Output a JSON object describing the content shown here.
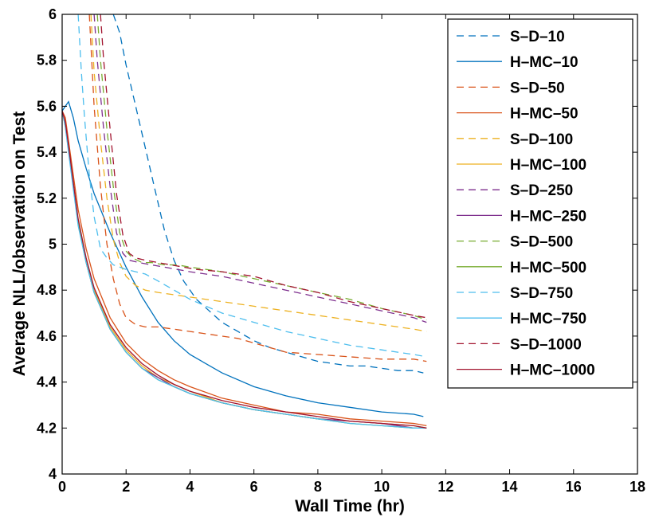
{
  "chart_data": {
    "type": "line",
    "title": "",
    "xlabel": "Wall Time (hr)",
    "ylabel": "Average NLL/observation on Test",
    "xlim": [
      0,
      18
    ],
    "ylim": [
      4,
      6
    ],
    "xticks": [
      0,
      2,
      4,
      6,
      8,
      10,
      12,
      14,
      16,
      18
    ],
    "yticks": [
      4,
      4.2,
      4.4,
      4.6,
      4.8,
      5,
      5.2,
      5.4,
      5.6,
      5.8,
      6
    ],
    "xtick_labels": [
      "0",
      "2",
      "4",
      "6",
      "8",
      "10",
      "12",
      "14",
      "16",
      "18"
    ],
    "ytick_labels": [
      "4",
      "4.2",
      "4.4",
      "4.6",
      "4.8",
      "5",
      "5.2",
      "5.4",
      "5.6",
      "5.8",
      "6"
    ],
    "grid": false,
    "legend_position": "top-right",
    "series": [
      {
        "name": "S–D–10",
        "color": "#0072BD",
        "dash": true,
        "x": [
          1.6,
          1.8,
          2.0,
          2.3,
          2.6,
          2.9,
          3.2,
          3.5,
          3.8,
          4.2,
          4.6,
          5.0,
          5.5,
          6.0,
          6.5,
          7.0,
          7.5,
          8.0,
          8.5,
          9.0,
          9.5,
          10.0,
          10.5,
          11.0,
          11.3
        ],
        "y": [
          6.0,
          5.92,
          5.78,
          5.6,
          5.42,
          5.24,
          5.06,
          4.93,
          4.84,
          4.76,
          4.71,
          4.66,
          4.62,
          4.58,
          4.55,
          4.53,
          4.51,
          4.49,
          4.48,
          4.47,
          4.47,
          4.46,
          4.45,
          4.45,
          4.44
        ]
      },
      {
        "name": "H–MC–10",
        "color": "#0072BD",
        "dash": false,
        "x": [
          0.0,
          0.1,
          0.2,
          0.35,
          0.5,
          0.75,
          1.0,
          1.5,
          2.0,
          2.5,
          3.0,
          3.5,
          4.0,
          5.0,
          6.0,
          7.0,
          8.0,
          9.0,
          10.0,
          11.0,
          11.3
        ],
        "y": [
          5.58,
          5.6,
          5.62,
          5.55,
          5.45,
          5.33,
          5.22,
          5.05,
          4.9,
          4.77,
          4.66,
          4.58,
          4.52,
          4.44,
          4.38,
          4.34,
          4.31,
          4.29,
          4.27,
          4.26,
          4.25
        ]
      },
      {
        "name": "S–D–50",
        "color": "#D95319",
        "dash": true,
        "x": [
          0.85,
          1.0,
          1.2,
          1.4,
          1.6,
          1.8,
          2.0,
          2.3,
          2.6,
          3.0,
          3.5,
          4.0,
          4.5,
          5.0,
          5.5,
          6.0,
          7.0,
          8.0,
          9.0,
          10.0,
          11.0,
          11.4
        ],
        "y": [
          6.0,
          5.6,
          5.25,
          5.0,
          4.85,
          4.74,
          4.68,
          4.65,
          4.64,
          4.64,
          4.63,
          4.62,
          4.61,
          4.6,
          4.59,
          4.57,
          4.53,
          4.52,
          4.51,
          4.5,
          4.5,
          4.49
        ]
      },
      {
        "name": "H–MC–50",
        "color": "#D95319",
        "dash": false,
        "x": [
          0.0,
          0.1,
          0.2,
          0.35,
          0.5,
          0.75,
          1.0,
          1.5,
          2.0,
          2.5,
          3.0,
          3.5,
          4.0,
          5.0,
          6.0,
          7.0,
          8.0,
          9.0,
          10.0,
          11.0,
          11.4
        ],
        "y": [
          5.58,
          5.55,
          5.45,
          5.3,
          5.15,
          4.98,
          4.85,
          4.68,
          4.57,
          4.5,
          4.45,
          4.41,
          4.38,
          4.33,
          4.3,
          4.27,
          4.26,
          4.24,
          4.23,
          4.22,
          4.21
        ]
      },
      {
        "name": "S–D–100",
        "color": "#EDB120",
        "dash": true,
        "x": [
          0.9,
          1.0,
          1.2,
          1.4,
          1.6,
          1.8,
          2.0,
          2.3,
          2.6,
          3.0,
          3.5,
          4.0,
          5.0,
          6.0,
          7.0,
          8.0,
          9.0,
          10.0,
          11.0,
          11.4
        ],
        "y": [
          6.0,
          5.75,
          5.45,
          5.2,
          5.02,
          4.92,
          4.86,
          4.82,
          4.8,
          4.79,
          4.78,
          4.77,
          4.75,
          4.73,
          4.71,
          4.69,
          4.67,
          4.65,
          4.63,
          4.62
        ]
      },
      {
        "name": "H–MC–100",
        "color": "#EDB120",
        "dash": false,
        "x": [
          0.0,
          0.1,
          0.2,
          0.35,
          0.5,
          0.75,
          1.0,
          1.5,
          2.0,
          2.5,
          3.0,
          3.5,
          4.0,
          5.0,
          6.0,
          7.0,
          8.0,
          9.0,
          10.0,
          11.0,
          11.4
        ],
        "y": [
          5.58,
          5.52,
          5.42,
          5.26,
          5.1,
          4.93,
          4.8,
          4.64,
          4.54,
          4.47,
          4.42,
          4.39,
          4.36,
          4.31,
          4.28,
          4.26,
          4.24,
          4.23,
          4.22,
          4.21,
          4.2
        ]
      },
      {
        "name": "S–D–250",
        "color": "#7E2F8E",
        "dash": true,
        "x": [
          1.0,
          1.1,
          1.3,
          1.5,
          1.7,
          1.9,
          2.1,
          2.4,
          2.8,
          3.2,
          3.6,
          4.0,
          5.0,
          6.0,
          7.0,
          8.0,
          9.0,
          10.0,
          11.0,
          11.4
        ],
        "y": [
          6.0,
          5.8,
          5.5,
          5.25,
          5.05,
          4.96,
          4.93,
          4.92,
          4.91,
          4.9,
          4.89,
          4.88,
          4.86,
          4.83,
          4.8,
          4.77,
          4.74,
          4.71,
          4.68,
          4.66
        ]
      },
      {
        "name": "H–MC–250",
        "color": "#7E2F8E",
        "dash": false,
        "x": [
          0.0,
          0.1,
          0.2,
          0.35,
          0.5,
          0.75,
          1.0,
          1.5,
          2.0,
          2.5,
          3.0,
          3.5,
          4.0,
          5.0,
          6.0,
          7.0,
          8.0,
          9.0,
          10.0,
          11.0,
          11.4
        ],
        "y": [
          5.58,
          5.52,
          5.41,
          5.25,
          5.09,
          4.92,
          4.79,
          4.63,
          4.53,
          4.46,
          4.42,
          4.38,
          4.35,
          4.31,
          4.28,
          4.26,
          4.24,
          4.23,
          4.22,
          4.2,
          4.2
        ]
      },
      {
        "name": "S–D–500",
        "color": "#77AC30",
        "dash": true,
        "x": [
          1.1,
          1.2,
          1.4,
          1.6,
          1.8,
          2.0,
          2.2,
          2.5,
          2.8,
          3.2,
          3.6,
          4.0,
          5.0,
          6.0,
          7.0,
          8.0,
          9.0,
          10.0,
          11.0,
          11.4
        ],
        "y": [
          6.0,
          5.8,
          5.5,
          5.25,
          5.05,
          4.97,
          4.94,
          4.92,
          4.92,
          4.91,
          4.91,
          4.9,
          4.88,
          4.85,
          4.82,
          4.79,
          4.76,
          4.72,
          4.69,
          4.67
        ]
      },
      {
        "name": "H–MC–500",
        "color": "#77AC30",
        "dash": false,
        "x": [
          0.0,
          0.1,
          0.2,
          0.35,
          0.5,
          0.75,
          1.0,
          1.5,
          2.0,
          2.5,
          3.0,
          3.5,
          4.0,
          5.0,
          6.0,
          7.0,
          8.0,
          9.0,
          10.0,
          11.0,
          11.4
        ],
        "y": [
          5.58,
          5.51,
          5.41,
          5.25,
          5.09,
          4.92,
          4.79,
          4.63,
          4.53,
          4.46,
          4.41,
          4.38,
          4.35,
          4.31,
          4.28,
          4.26,
          4.24,
          4.22,
          4.21,
          4.2,
          4.2
        ]
      },
      {
        "name": "S–D–750",
        "color": "#4DBEEE",
        "dash": true,
        "x": [
          0.5,
          0.6,
          0.7,
          0.85,
          1.0,
          1.2,
          1.4,
          1.6,
          1.8,
          2.0,
          2.3,
          2.6,
          3.0,
          3.5,
          4.0,
          5.0,
          6.0,
          7.0,
          8.0,
          9.0,
          10.0,
          11.0,
          11.4
        ],
        "y": [
          6.0,
          5.75,
          5.55,
          5.3,
          5.12,
          4.98,
          4.94,
          4.91,
          4.9,
          4.89,
          4.88,
          4.87,
          4.84,
          4.8,
          4.76,
          4.7,
          4.66,
          4.62,
          4.59,
          4.56,
          4.54,
          4.52,
          4.51
        ]
      },
      {
        "name": "H–MC–750",
        "color": "#4DBEEE",
        "dash": false,
        "x": [
          0.0,
          0.1,
          0.2,
          0.35,
          0.5,
          0.75,
          1.0,
          1.5,
          2.0,
          2.5,
          3.0,
          3.5,
          4.0,
          5.0,
          6.0,
          7.0,
          8.0,
          9.0,
          10.0,
          11.0,
          11.4
        ],
        "y": [
          5.58,
          5.51,
          5.4,
          5.24,
          5.08,
          4.92,
          4.79,
          4.63,
          4.53,
          4.46,
          4.41,
          4.38,
          4.35,
          4.31,
          4.28,
          4.26,
          4.24,
          4.22,
          4.21,
          4.2,
          4.2
        ]
      },
      {
        "name": "S–D–1000",
        "color": "#A2142F",
        "dash": true,
        "x": [
          1.2,
          1.3,
          1.5,
          1.7,
          1.9,
          2.1,
          2.3,
          2.6,
          3.0,
          3.4,
          3.8,
          4.2,
          5.0,
          6.0,
          7.0,
          8.0,
          9.0,
          10.0,
          11.0,
          11.4
        ],
        "y": [
          6.0,
          5.8,
          5.5,
          5.22,
          5.04,
          4.96,
          4.94,
          4.93,
          4.92,
          4.91,
          4.9,
          4.89,
          4.88,
          4.86,
          4.82,
          4.79,
          4.75,
          4.72,
          4.69,
          4.68
        ]
      },
      {
        "name": "H–MC–1000",
        "color": "#A2142F",
        "dash": false,
        "x": [
          0.0,
          0.1,
          0.2,
          0.35,
          0.5,
          0.75,
          1.0,
          1.5,
          2.0,
          2.5,
          3.0,
          3.5,
          4.0,
          5.0,
          6.0,
          7.0,
          8.0,
          9.0,
          10.0,
          11.0,
          11.4
        ],
        "y": [
          5.58,
          5.53,
          5.43,
          5.27,
          5.11,
          4.94,
          4.81,
          4.65,
          4.55,
          4.48,
          4.43,
          4.39,
          4.36,
          4.32,
          4.29,
          4.27,
          4.25,
          4.23,
          4.22,
          4.21,
          4.2
        ]
      }
    ]
  }
}
